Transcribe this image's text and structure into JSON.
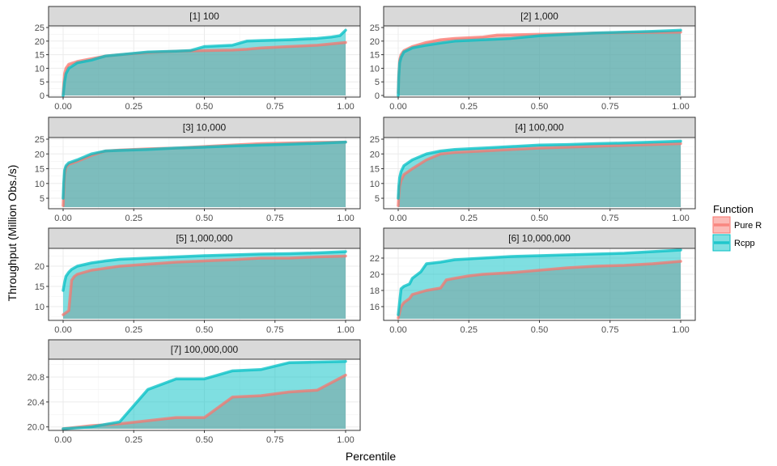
{
  "chart_data": {
    "type": "area",
    "xlabel": "Percentile",
    "ylabel": "Throughput (Million Obs./s)",
    "legend": {
      "title": "Function",
      "placement": "right",
      "entries": [
        {
          "name": "Pure R",
          "color": "#F8766D"
        },
        {
          "name": "Rcpp",
          "color": "#00BFC4"
        }
      ]
    },
    "grid": true,
    "x_ticks": [
      "0.00",
      "0.25",
      "0.50",
      "0.75",
      "1.00"
    ],
    "xlim": [
      0,
      1
    ],
    "panels": [
      {
        "title": "[1] 100",
        "ylim": [
          0,
          25
        ],
        "y_ticks": [
          0,
          5,
          10,
          15,
          20,
          25
        ],
        "y_tick_labels": [
          "0",
          "5",
          "10",
          "15",
          "20",
          "25"
        ],
        "series": [
          {
            "name": "Pure R",
            "x": [
              0,
              0.002,
              0.005,
              0.01,
              0.02,
              0.05,
              0.1,
              0.15,
              0.2,
              0.3,
              0.4,
              0.5,
              0.6,
              0.65,
              0.7,
              0.8,
              0.9,
              1.0
            ],
            "y": [
              0.5,
              4,
              8,
              10,
              11.5,
              12.5,
              13.5,
              14.5,
              15,
              15.8,
              16.3,
              16.5,
              16.7,
              17,
              17.5,
              18,
              18.5,
              19.5
            ]
          },
          {
            "name": "Rcpp",
            "x": [
              0,
              0.002,
              0.005,
              0.01,
              0.02,
              0.05,
              0.1,
              0.15,
              0.2,
              0.3,
              0.4,
              0.45,
              0.5,
              0.6,
              0.65,
              0.7,
              0.8,
              0.9,
              0.95,
              0.98,
              1.0
            ],
            "y": [
              0,
              2,
              5,
              8,
              10,
              12,
              13,
              14.5,
              15,
              16,
              16.3,
              16.5,
              18,
              18.5,
              20,
              20.2,
              20.5,
              21,
              21.5,
              22,
              24
            ]
          }
        ]
      },
      {
        "title": "[2] 1,000",
        "ylim": [
          0,
          25
        ],
        "y_ticks": [
          0,
          5,
          10,
          15,
          20,
          25
        ],
        "y_tick_labels": [
          "0",
          "5",
          "10",
          "15",
          "20",
          "25"
        ],
        "series": [
          {
            "name": "Pure R",
            "x": [
              0,
              0.002,
              0.005,
              0.01,
              0.02,
              0.05,
              0.1,
              0.15,
              0.2,
              0.3,
              0.35,
              0.4,
              0.5,
              0.6,
              0.7,
              0.8,
              0.9,
              1.0
            ],
            "y": [
              1,
              8,
              13,
              15,
              16.5,
              18,
              19.5,
              20.5,
              21,
              21.5,
              22.2,
              22.3,
              22.5,
              22.7,
              23,
              23.1,
              23.2,
              23.3
            ]
          },
          {
            "name": "Rcpp",
            "x": [
              0,
              0.002,
              0.005,
              0.01,
              0.02,
              0.05,
              0.1,
              0.15,
              0.2,
              0.3,
              0.4,
              0.5,
              0.6,
              0.7,
              0.8,
              0.9,
              1.0
            ],
            "y": [
              0,
              7,
              12,
              14,
              16,
              17.5,
              18.5,
              19.3,
              20,
              20.5,
              21,
              22,
              22.5,
              23,
              23.3,
              23.6,
              24
            ]
          }
        ]
      },
      {
        "title": "[3] 10,000",
        "ylim": [
          2,
          25
        ],
        "y_ticks": [
          5,
          10,
          15,
          20,
          25
        ],
        "y_tick_labels": [
          "5",
          "10",
          "15",
          "20",
          "25"
        ],
        "series": [
          {
            "name": "Pure R",
            "x": [
              0,
              0.002,
              0.005,
              0.01,
              0.02,
              0.05,
              0.1,
              0.15,
              0.2,
              0.3,
              0.4,
              0.5,
              0.6,
              0.7,
              0.8,
              0.9,
              1.0
            ],
            "y": [
              2.5,
              7,
              13,
              15.5,
              16.5,
              17.5,
              19.5,
              21,
              21.3,
              21.7,
              22,
              22.5,
              23,
              23.5,
              23.7,
              23.9,
              24
            ]
          },
          {
            "name": "Rcpp",
            "x": [
              0,
              0.002,
              0.005,
              0.01,
              0.02,
              0.05,
              0.1,
              0.15,
              0.2,
              0.3,
              0.4,
              0.5,
              0.6,
              0.7,
              0.8,
              0.9,
              1.0
            ],
            "y": [
              5,
              10,
              14.5,
              16,
              17,
              18,
              20,
              21,
              21.2,
              21.5,
              22,
              22.3,
              22.7,
              23,
              23.3,
              23.6,
              24
            ]
          }
        ]
      },
      {
        "title": "[4] 100,000",
        "ylim": [
          2,
          25
        ],
        "y_ticks": [
          5,
          10,
          15,
          20,
          25
        ],
        "y_tick_labels": [
          "5",
          "10",
          "15",
          "20",
          "25"
        ],
        "series": [
          {
            "name": "Pure R",
            "x": [
              0,
              0.002,
              0.005,
              0.01,
              0.02,
              0.05,
              0.1,
              0.15,
              0.2,
              0.3,
              0.4,
              0.5,
              0.6,
              0.7,
              0.8,
              0.9,
              1.0
            ],
            "y": [
              2.5,
              6,
              9,
              11,
              13,
              15,
              18,
              20,
              20.5,
              21,
              21.5,
              22,
              22.3,
              22.6,
              22.9,
              23.2,
              23.5
            ]
          },
          {
            "name": "Rcpp",
            "x": [
              0,
              0.002,
              0.005,
              0.01,
              0.02,
              0.05,
              0.1,
              0.15,
              0.2,
              0.3,
              0.4,
              0.5,
              0.6,
              0.7,
              0.8,
              0.9,
              1.0
            ],
            "y": [
              5,
              9,
              12,
              14,
              16,
              18,
              20,
              21,
              21.5,
              22,
              22.5,
              23,
              23.2,
              23.5,
              23.7,
              24,
              24.3
            ]
          }
        ]
      },
      {
        "title": "[5] 1,000,000",
        "ylim": [
          7,
          24
        ],
        "y_ticks": [
          10,
          15,
          20
        ],
        "y_tick_labels": [
          "10",
          "15",
          "20"
        ],
        "series": [
          {
            "name": "Pure R",
            "x": [
              0,
              0.01,
              0.02,
              0.03,
              0.04,
              0.05,
              0.1,
              0.15,
              0.2,
              0.3,
              0.4,
              0.5,
              0.6,
              0.7,
              0.8,
              0.9,
              1.0
            ],
            "y": [
              8,
              8.5,
              9,
              16.5,
              17.5,
              18,
              19,
              19.5,
              20,
              20.5,
              21,
              21.3,
              21.6,
              22,
              22,
              22.3,
              22.5
            ]
          },
          {
            "name": "Rcpp",
            "x": [
              0,
              0.005,
              0.01,
              0.02,
              0.03,
              0.05,
              0.1,
              0.15,
              0.2,
              0.3,
              0.4,
              0.5,
              0.6,
              0.7,
              0.8,
              0.9,
              1.0
            ],
            "y": [
              14,
              16,
              17.5,
              18.5,
              19.2,
              20,
              20.8,
              21.3,
              21.7,
              22,
              22.3,
              22.6,
              22.8,
              23,
              23.1,
              23.3,
              23.6
            ]
          }
        ]
      },
      {
        "title": "[6] 10,000,000",
        "ylim": [
          14.5,
          23
        ],
        "y_ticks": [
          16,
          18,
          20,
          22
        ],
        "y_tick_labels": [
          "16",
          "18",
          "20",
          "22"
        ],
        "series": [
          {
            "name": "Pure R",
            "x": [
              0,
              0.01,
              0.02,
              0.04,
              0.05,
              0.08,
              0.1,
              0.15,
              0.17,
              0.2,
              0.25,
              0.3,
              0.4,
              0.5,
              0.6,
              0.7,
              0.8,
              0.9,
              1.0
            ],
            "y": [
              14.6,
              16,
              16.5,
              17,
              17.5,
              17.8,
              18,
              18.3,
              19.3,
              19.5,
              19.8,
              20,
              20.2,
              20.5,
              20.8,
              21,
              21.1,
              21.3,
              21.6
            ]
          },
          {
            "name": "Rcpp",
            "x": [
              0,
              0.01,
              0.02,
              0.04,
              0.05,
              0.08,
              0.1,
              0.15,
              0.2,
              0.3,
              0.4,
              0.5,
              0.6,
              0.7,
              0.8,
              0.9,
              1.0
            ],
            "y": [
              15,
              18.2,
              18.5,
              18.8,
              19.5,
              20.3,
              21.3,
              21.5,
              21.8,
              22,
              22.2,
              22.3,
              22.4,
              22.5,
              22.6,
              22.8,
              23
            ]
          }
        ]
      },
      {
        "title": "[7] 100,000,000",
        "ylim": [
          19.97,
          21.06
        ],
        "y_ticks": [
          20.0,
          20.4,
          20.8
        ],
        "y_tick_labels": [
          "20.0",
          "20.4",
          "20.8"
        ],
        "series": [
          {
            "name": "Pure R",
            "x": [
              0,
              0.1,
              0.2,
              0.3,
              0.4,
              0.5,
              0.6,
              0.7,
              0.8,
              0.9,
              1.0
            ],
            "y": [
              19.97,
              20.02,
              20.05,
              20.1,
              20.15,
              20.15,
              20.48,
              20.5,
              20.56,
              20.59,
              20.83
            ]
          },
          {
            "name": "Rcpp",
            "x": [
              0,
              0.1,
              0.2,
              0.3,
              0.4,
              0.5,
              0.6,
              0.7,
              0.8,
              0.9,
              1.0
            ],
            "y": [
              19.97,
              20.0,
              20.08,
              20.6,
              20.77,
              20.77,
              20.9,
              20.92,
              21.03,
              21.04,
              21.05
            ]
          }
        ]
      }
    ]
  }
}
